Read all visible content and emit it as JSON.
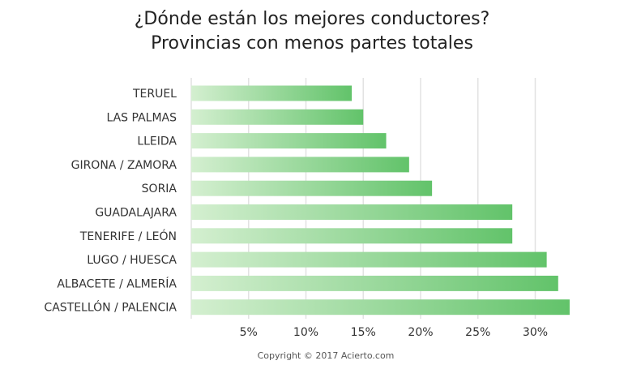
{
  "chart_data": {
    "type": "bar",
    "orientation": "horizontal",
    "title_lines": [
      "¿Dónde están los mejores conductores?",
      "Provincias con menos partes totales"
    ],
    "categories": [
      "TERUEL",
      "LAS PALMAS",
      "LLEIDA",
      "GIRONA / ZAMORA",
      "SORIA",
      "GUADALAJARA",
      "TENERIFE / LEÓN",
      "LUGO / HUESCA",
      "ALBACETE / ALMERÍA",
      "CASTELLÓN / PALENCIA"
    ],
    "values": [
      14,
      15,
      17,
      19,
      21,
      28,
      28,
      31,
      32,
      33
    ],
    "unit": "%",
    "xlim": [
      0,
      33.5
    ],
    "x_ticks": [
      5,
      10,
      15,
      20,
      25,
      30
    ],
    "x_tick_labels": [
      "5%",
      "10%",
      "15%",
      "20%",
      "25%",
      "30%"
    ],
    "grid": "vertical",
    "legend": "none",
    "bar_gradient": [
      "#d4efd0",
      "#62c36a"
    ]
  },
  "copyright": "Copyright © 2017 Acierto.com"
}
